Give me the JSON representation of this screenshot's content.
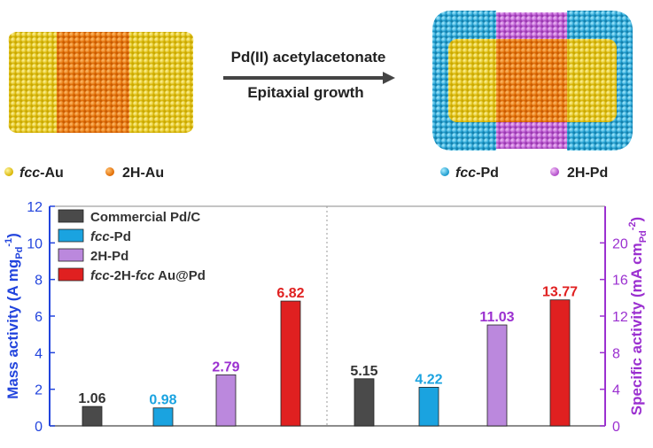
{
  "scheme": {
    "reagent": "Pd(II) acetylacetonate",
    "process": "Epitaxial growth",
    "legend": [
      {
        "italic": "fcc",
        "rest": "-Au",
        "color": "#f2d21e"
      },
      {
        "italic": "",
        "rest": "2H-Au",
        "color": "#f28a12"
      },
      {
        "italic": "fcc",
        "rest": "-Pd",
        "color": "#2ab7e6"
      },
      {
        "italic": "",
        "rest": "2H-Pd",
        "color": "#cc66dd"
      }
    ]
  },
  "chart_data": [
    {
      "type": "bar",
      "panel": "left",
      "ylabel": "Mass activity (A mg",
      "ylabel_sub": "Pd",
      "ylabel_sup": "-1",
      "ylabel_close": ")",
      "ylim": [
        0,
        12
      ],
      "yticks": [
        "0",
        "2",
        "4",
        "6",
        "8",
        "10",
        "12"
      ],
      "axis_color": "#2244dd",
      "categories": [
        "Commercial Pd/C",
        "fcc-Pd",
        "2H-Pd",
        "fcc-2H-fcc Au@Pd"
      ],
      "values": [
        1.06,
        0.98,
        2.79,
        6.82
      ],
      "data_labels": [
        "1.06",
        "0.98",
        "2.79",
        "6.82"
      ]
    },
    {
      "type": "bar",
      "panel": "right",
      "ylabel": "Specific activity (mA cm",
      "ylabel_sub": "Pd",
      "ylabel_sup": "-2",
      "ylabel_close": ")",
      "ylim": [
        0,
        24
      ],
      "yticks": [
        "0",
        "4",
        "8",
        "12",
        "16",
        "20"
      ],
      "axis_color": "#9b30d0",
      "categories": [
        "Commercial Pd/C",
        "fcc-Pd",
        "2H-Pd",
        "fcc-2H-fcc Au@Pd"
      ],
      "values": [
        5.15,
        4.22,
        11.03,
        13.77
      ],
      "data_labels": [
        "5.15",
        "4.22",
        "11.03",
        "13.77"
      ]
    }
  ],
  "legend": [
    {
      "parts": [
        {
          "t": "Commercial Pd/C",
          "i": false
        }
      ],
      "color": "#4a4a4a",
      "label_color": "#333333"
    },
    {
      "parts": [
        {
          "t": "fcc",
          "i": true
        },
        {
          "t": "-Pd",
          "i": false
        }
      ],
      "color": "#1aa3e0",
      "label_color": "#333333"
    },
    {
      "parts": [
        {
          "t": "2H-Pd",
          "i": false
        }
      ],
      "color": "#bb88dd",
      "label_color": "#333333"
    },
    {
      "parts": [
        {
          "t": "fcc",
          "i": true
        },
        {
          "t": "-2H-",
          "i": false
        },
        {
          "t": "fcc",
          "i": true
        },
        {
          "t": " Au@Pd",
          "i": false
        }
      ],
      "color": "#e02020",
      "label_color": "#333333"
    }
  ],
  "bar_colors": [
    "#4a4a4a",
    "#1aa3e0",
    "#bb88dd",
    "#e02020"
  ],
  "value_label_colors": [
    "#333333",
    "#1aa3e0",
    "#9b30d0",
    "#e02020"
  ]
}
